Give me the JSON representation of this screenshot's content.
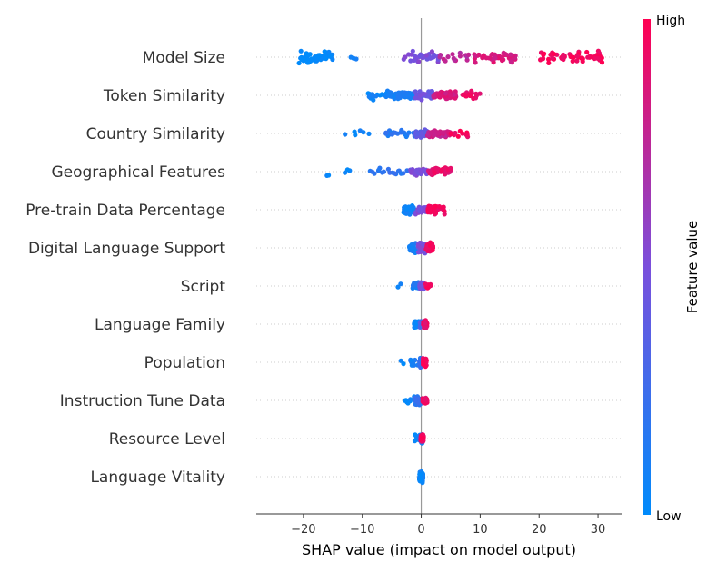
{
  "chart_data": {
    "type": "scatter",
    "subtype": "shap-beeswarm",
    "xlabel": "SHAP value (impact on model output)",
    "xlim": [
      -28,
      34
    ],
    "xticks": [
      -20,
      -10,
      0,
      10,
      20,
      30
    ],
    "xtick_labels": [
      "−20",
      "−10",
      "0",
      "10",
      "20",
      "30"
    ],
    "colorbar": {
      "label": "Feature value",
      "high_label": "High",
      "low_label": "Low",
      "low_color": "#008bfb",
      "high_color": "#ff0052"
    },
    "features": [
      {
        "name": "Model Size",
        "min": -25,
        "max": 31,
        "spread": 9,
        "clusters": [
          [
            -21,
            -15,
            0,
            60
          ],
          [
            -12,
            -11,
            0.1,
            3
          ],
          [
            -3,
            3,
            0.5,
            30
          ],
          [
            3,
            9,
            0.75,
            15
          ],
          [
            9,
            16,
            0.85,
            45
          ],
          [
            20,
            31,
            0.97,
            55
          ]
        ]
      },
      {
        "name": "Token Similarity",
        "min": -9,
        "max": 10,
        "spread": 6,
        "clusters": [
          [
            -9,
            -6,
            0.05,
            12
          ],
          [
            -6,
            -1,
            0.1,
            60
          ],
          [
            -1,
            2,
            0.45,
            40
          ],
          [
            2,
            6,
            0.85,
            60
          ],
          [
            6,
            10,
            0.92,
            15
          ]
        ]
      },
      {
        "name": "Country Similarity",
        "min": -13,
        "max": 8,
        "spread": 5,
        "clusters": [
          [
            -13,
            -8,
            0.05,
            6
          ],
          [
            -6,
            -1,
            0.15,
            25
          ],
          [
            -1,
            1,
            0.4,
            55
          ],
          [
            1,
            5,
            0.8,
            55
          ],
          [
            5,
            8,
            0.95,
            12
          ]
        ]
      },
      {
        "name": "Geographical Features",
        "min": -17,
        "max": 5,
        "spread": 6,
        "clusters": [
          [
            -17,
            -12,
            0.05,
            5
          ],
          [
            -9,
            -2,
            0.2,
            18
          ],
          [
            -2,
            1,
            0.5,
            25
          ],
          [
            1,
            5,
            0.9,
            55
          ]
        ]
      },
      {
        "name": "Pre-train Data Percentage",
        "min": -3,
        "max": 4,
        "spread": 6,
        "clusters": [
          [
            -3,
            -1,
            0.05,
            55
          ],
          [
            -1,
            1,
            0.5,
            30
          ],
          [
            1,
            4,
            0.95,
            45
          ]
        ]
      },
      {
        "name": "Digital Language Support",
        "min": -2,
        "max": 2,
        "spread": 7,
        "clusters": [
          [
            -2,
            -0.5,
            0.1,
            30
          ],
          [
            -0.5,
            0.8,
            0.5,
            60
          ],
          [
            0.8,
            2,
            0.95,
            45
          ]
        ]
      },
      {
        "name": "Script",
        "min": -4,
        "max": 2,
        "spread": 6,
        "clusters": [
          [
            -4,
            -3,
            0.05,
            2
          ],
          [
            -1.5,
            -0.3,
            0.1,
            15
          ],
          [
            -0.3,
            0.5,
            0.45,
            60
          ],
          [
            0.5,
            1.6,
            0.95,
            12
          ]
        ]
      },
      {
        "name": "Language Family",
        "min": -1,
        "max": 1,
        "spread": 6,
        "clusters": [
          [
            -1.2,
            -0.2,
            0.05,
            30
          ],
          [
            -0.2,
            0.3,
            0.3,
            40
          ],
          [
            0.3,
            1,
            0.92,
            35
          ]
        ]
      },
      {
        "name": "Population",
        "min": -4,
        "max": 1,
        "spread": 6,
        "clusters": [
          [
            -4,
            -3,
            0.05,
            2
          ],
          [
            -2,
            -0.3,
            0.1,
            12
          ],
          [
            -0.3,
            0.3,
            0.2,
            60
          ],
          [
            0.3,
            0.9,
            0.95,
            30
          ]
        ]
      },
      {
        "name": "Instruction Tune Data",
        "min": -3,
        "max": 1,
        "spread": 6,
        "clusters": [
          [
            -2.8,
            -1,
            0.05,
            8
          ],
          [
            -1,
            0.2,
            0.2,
            50
          ],
          [
            0.2,
            1,
            0.92,
            30
          ]
        ]
      },
      {
        "name": "Resource Level",
        "min": -1,
        "max": 1,
        "spread": 6,
        "clusters": [
          [
            -1.2,
            -0.5,
            0.05,
            5
          ],
          [
            -0.3,
            0.2,
            0.15,
            45
          ],
          [
            -0.1,
            0.4,
            0.95,
            55
          ]
        ]
      },
      {
        "name": "Language Vitality",
        "min": -0.3,
        "max": 0.3,
        "spread": 7,
        "clusters": [
          [
            -0.3,
            0.3,
            0.05,
            140
          ]
        ]
      }
    ]
  }
}
